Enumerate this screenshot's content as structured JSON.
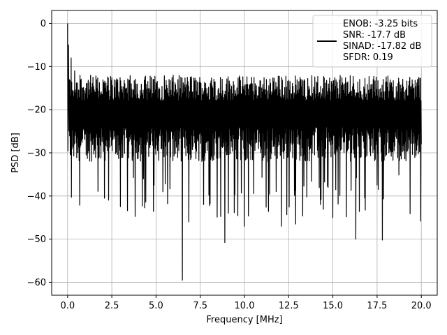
{
  "chart_data": {
    "type": "line",
    "title": "",
    "xlabel": "Frequency [MHz]",
    "ylabel": "PSD [dB]",
    "xlim": [
      -0.9,
      20.9
    ],
    "ylim": [
      -63,
      3
    ],
    "xticks": [
      0.0,
      2.5,
      5.0,
      7.5,
      10.0,
      12.5,
      15.0,
      17.5,
      20.0
    ],
    "xtick_labels": [
      "0.0",
      "2.5",
      "5.0",
      "7.5",
      "10.0",
      "12.5",
      "15.0",
      "17.5",
      "20.0"
    ],
    "yticks": [
      0,
      -10,
      -20,
      -30,
      -40,
      -50,
      -60
    ],
    "ytick_labels": [
      "0",
      "−10",
      "−20",
      "−30",
      "−40",
      "−50",
      "−60"
    ],
    "grid": true,
    "legend_position": "top-right",
    "series": [
      {
        "name": "ENOB: -3.25 bits\nSNR: -17.7 dB\nSINAD: -17.82 dB\nSFDR: 0.19",
        "legend_lines": [
          "ENOB: -3.25 bits",
          "SNR: -17.7 dB",
          "SINAD: -17.82 dB",
          "SFDR: 0.19"
        ],
        "color": "#000000",
        "x_range": [
          0,
          20
        ],
        "points": 1200,
        "noise_band": {
          "upper_dB": -15,
          "lower_dB": -28,
          "floor_spike_min_dB": -45
        },
        "peaks": [
          {
            "x": 0.0,
            "y": 0
          },
          {
            "x": 0.05,
            "y": -5
          },
          {
            "x": 0.2,
            "y": -8
          },
          {
            "x": 0.4,
            "y": -11
          },
          {
            "x": 0.7,
            "y": -12
          }
        ],
        "deep_nulls": [
          {
            "x": 6.5,
            "y": -59.5
          },
          {
            "x": 8.9,
            "y": -50.8
          },
          {
            "x": 10.0,
            "y": -47
          },
          {
            "x": 6.85,
            "y": -46
          },
          {
            "x": 12.9,
            "y": -46.5
          },
          {
            "x": 16.3,
            "y": -50
          },
          {
            "x": 17.8,
            "y": -50.2
          },
          {
            "x": 12.1,
            "y": -47
          },
          {
            "x": 19.95,
            "y": -45.8
          },
          {
            "x": 7.7,
            "y": -42
          },
          {
            "x": 2.1,
            "y": -40.5
          },
          {
            "x": 9.1,
            "y": -44
          },
          {
            "x": 14.3,
            "y": -42
          },
          {
            "x": 15.0,
            "y": -45
          }
        ]
      }
    ]
  },
  "colors": {
    "grid": "#b0b0b0",
    "axes": "#000000",
    "line": "#000000",
    "legend_border": "#cccccc",
    "background": "#ffffff"
  }
}
